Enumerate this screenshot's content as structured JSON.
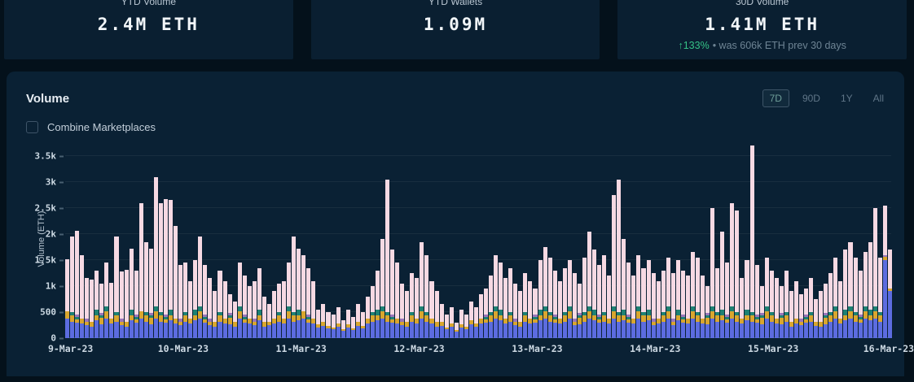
{
  "stats": {
    "cards": [
      {
        "label": "YTD Volume",
        "value": "2.4M ETH"
      },
      {
        "label": "YTD Wallets",
        "value": "1.09M"
      },
      {
        "label": "30D Volume",
        "value": "1.41M ETH",
        "delta_pct": "↑133%",
        "delta_note": "• was 606k ETH prev 30 days",
        "delta_color": "#35c186"
      }
    ]
  },
  "volume_section": {
    "title": "Volume",
    "combine_label": "Combine Marketplaces",
    "combine_checked": false,
    "ranges": [
      {
        "label": "7D",
        "selected": true
      },
      {
        "label": "90D",
        "selected": false
      },
      {
        "label": "1Y",
        "selected": false
      },
      {
        "label": "All",
        "selected": false
      }
    ]
  },
  "chart_data": {
    "type": "bar",
    "stacked": true,
    "granularity": "hourly",
    "title": "Volume",
    "xlabel": "",
    "ylabel": "Volume (ETH)",
    "ymax": 3750,
    "grid": true,
    "legend": "none",
    "yticks": [
      {
        "v": 0,
        "label": "0"
      },
      {
        "v": 500,
        "label": "500"
      },
      {
        "v": 1000,
        "label": "1k"
      },
      {
        "v": 1500,
        "label": "1.5k"
      },
      {
        "v": 2000,
        "label": "2k"
      },
      {
        "v": 2500,
        "label": "2.5k"
      },
      {
        "v": 3000,
        "label": "3k"
      },
      {
        "v": 3500,
        "label": "3.5k"
      }
    ],
    "x_labels": [
      "9-Mar-23",
      "10-Mar-23",
      "11-Mar-23",
      "12-Mar-23",
      "13-Mar-23",
      "14-Mar-23",
      "15-Mar-23",
      "16-Mar-23"
    ],
    "series_colors_bottom_to_top": [
      "#5c6ce0",
      "#d9a62e",
      "#1e8173",
      "#9a76ba",
      "#f6d9e3"
    ],
    "colors": [
      "#5c6ce0",
      "#d9a62e",
      "#1e8173",
      "#9a76ba",
      "#f6d9e3"
    ],
    "bars": [
      [
        380,
        140,
        0,
        0,
        1000
      ],
      [
        320,
        120,
        60,
        0,
        1450
      ],
      [
        300,
        60,
        40,
        60,
        1600
      ],
      [
        280,
        90,
        0,
        0,
        1230
      ],
      [
        250,
        70,
        0,
        50,
        780
      ],
      [
        220,
        100,
        0,
        0,
        810
      ],
      [
        350,
        90,
        110,
        0,
        750
      ],
      [
        260,
        130,
        50,
        40,
        570
      ],
      [
        380,
        140,
        90,
        0,
        840
      ],
      [
        280,
        90,
        0,
        0,
        690
      ],
      [
        320,
        120,
        60,
        0,
        1450
      ],
      [
        250,
        70,
        0,
        50,
        910
      ],
      [
        220,
        100,
        0,
        0,
        990
      ],
      [
        350,
        90,
        110,
        0,
        1170
      ],
      [
        300,
        60,
        40,
        60,
        840
      ],
      [
        380,
        140,
        0,
        0,
        2080
      ],
      [
        320,
        120,
        60,
        0,
        1350
      ],
      [
        260,
        130,
        50,
        40,
        1240
      ],
      [
        380,
        140,
        90,
        0,
        2490
      ],
      [
        320,
        120,
        60,
        0,
        2100
      ],
      [
        300,
        60,
        40,
        60,
        2210
      ],
      [
        350,
        90,
        110,
        0,
        2100
      ],
      [
        280,
        90,
        0,
        0,
        1780
      ],
      [
        250,
        70,
        0,
        50,
        1030
      ],
      [
        320,
        120,
        60,
        0,
        950
      ],
      [
        280,
        90,
        0,
        0,
        730
      ],
      [
        350,
        90,
        110,
        0,
        950
      ],
      [
        380,
        140,
        90,
        0,
        1340
      ],
      [
        300,
        60,
        40,
        60,
        940
      ],
      [
        250,
        70,
        0,
        50,
        780
      ],
      [
        220,
        100,
        0,
        0,
        580
      ],
      [
        320,
        120,
        60,
        0,
        800
      ],
      [
        280,
        90,
        0,
        0,
        730
      ],
      [
        260,
        130,
        50,
        40,
        370
      ],
      [
        220,
        100,
        0,
        0,
        380
      ],
      [
        380,
        140,
        90,
        0,
        840
      ],
      [
        300,
        60,
        40,
        60,
        740
      ],
      [
        280,
        90,
        0,
        0,
        630
      ],
      [
        250,
        70,
        0,
        50,
        730
      ],
      [
        350,
        90,
        110,
        0,
        800
      ],
      [
        220,
        100,
        0,
        0,
        480
      ],
      [
        250,
        70,
        0,
        0,
        330
      ],
      [
        280,
        90,
        0,
        0,
        530
      ],
      [
        320,
        120,
        60,
        0,
        550
      ],
      [
        280,
        90,
        0,
        0,
        730
      ],
      [
        380,
        140,
        90,
        0,
        840
      ],
      [
        320,
        120,
        60,
        0,
        1450
      ],
      [
        350,
        90,
        110,
        0,
        1170
      ],
      [
        380,
        140,
        0,
        0,
        1080
      ],
      [
        300,
        60,
        40,
        60,
        890
      ],
      [
        280,
        90,
        0,
        0,
        730
      ],
      [
        200,
        60,
        0,
        0,
        290
      ],
      [
        240,
        70,
        0,
        0,
        340
      ],
      [
        190,
        50,
        0,
        0,
        260
      ],
      [
        170,
        40,
        0,
        0,
        240
      ],
      [
        220,
        60,
        0,
        0,
        320
      ],
      [
        140,
        40,
        0,
        0,
        170
      ],
      [
        200,
        60,
        0,
        0,
        290
      ],
      [
        150,
        40,
        0,
        0,
        210
      ],
      [
        240,
        70,
        0,
        0,
        340
      ],
      [
        190,
        50,
        0,
        0,
        260
      ],
      [
        280,
        90,
        0,
        0,
        430
      ],
      [
        320,
        120,
        60,
        0,
        500
      ],
      [
        350,
        90,
        110,
        0,
        750
      ],
      [
        380,
        140,
        90,
        0,
        1290
      ],
      [
        320,
        120,
        60,
        0,
        2550
      ],
      [
        300,
        60,
        40,
        60,
        1240
      ],
      [
        280,
        90,
        0,
        0,
        1080
      ],
      [
        250,
        70,
        0,
        50,
        680
      ],
      [
        220,
        100,
        0,
        0,
        580
      ],
      [
        320,
        120,
        60,
        0,
        750
      ],
      [
        280,
        90,
        0,
        0,
        780
      ],
      [
        380,
        140,
        90,
        0,
        1240
      ],
      [
        320,
        120,
        60,
        0,
        1100
      ],
      [
        280,
        90,
        0,
        0,
        730
      ],
      [
        220,
        100,
        0,
        0,
        580
      ],
      [
        240,
        70,
        0,
        0,
        340
      ],
      [
        170,
        40,
        0,
        0,
        240
      ],
      [
        220,
        60,
        0,
        0,
        320
      ],
      [
        120,
        30,
        0,
        0,
        150
      ],
      [
        200,
        60,
        0,
        0,
        290
      ],
      [
        170,
        50,
        0,
        0,
        230
      ],
      [
        260,
        80,
        0,
        0,
        360
      ],
      [
        220,
        60,
        0,
        0,
        320
      ],
      [
        280,
        90,
        0,
        0,
        480
      ],
      [
        300,
        60,
        40,
        60,
        490
      ],
      [
        320,
        120,
        60,
        0,
        700
      ],
      [
        380,
        140,
        90,
        0,
        990
      ],
      [
        350,
        90,
        110,
        0,
        900
      ],
      [
        280,
        90,
        0,
        0,
        780
      ],
      [
        320,
        120,
        60,
        0,
        850
      ],
      [
        250,
        70,
        0,
        50,
        680
      ],
      [
        220,
        100,
        0,
        0,
        580
      ],
      [
        320,
        120,
        60,
        0,
        750
      ],
      [
        280,
        90,
        0,
        0,
        730
      ],
      [
        300,
        60,
        40,
        60,
        490
      ],
      [
        350,
        90,
        110,
        0,
        950
      ],
      [
        380,
        140,
        90,
        0,
        1140
      ],
      [
        320,
        120,
        60,
        0,
        1050
      ],
      [
        300,
        60,
        40,
        60,
        840
      ],
      [
        280,
        90,
        0,
        0,
        730
      ],
      [
        320,
        120,
        60,
        0,
        850
      ],
      [
        380,
        140,
        90,
        0,
        890
      ],
      [
        250,
        70,
        0,
        50,
        880
      ],
      [
        260,
        130,
        50,
        40,
        570
      ],
      [
        320,
        120,
        60,
        0,
        1050
      ],
      [
        380,
        140,
        90,
        0,
        1440
      ],
      [
        350,
        90,
        110,
        0,
        1150
      ],
      [
        300,
        60,
        40,
        60,
        940
      ],
      [
        320,
        120,
        60,
        0,
        1100
      ],
      [
        280,
        90,
        0,
        0,
        830
      ],
      [
        380,
        140,
        90,
        0,
        2140
      ],
      [
        320,
        120,
        60,
        0,
        2550
      ],
      [
        350,
        90,
        110,
        0,
        1350
      ],
      [
        300,
        60,
        40,
        60,
        990
      ],
      [
        280,
        90,
        0,
        0,
        830
      ],
      [
        380,
        140,
        90,
        0,
        990
      ],
      [
        320,
        120,
        60,
        0,
        850
      ],
      [
        350,
        90,
        110,
        0,
        950
      ],
      [
        250,
        70,
        0,
        50,
        880
      ],
      [
        280,
        90,
        0,
        0,
        730
      ],
      [
        320,
        120,
        60,
        0,
        800
      ],
      [
        380,
        140,
        90,
        0,
        940
      ],
      [
        250,
        70,
        0,
        50,
        880
      ],
      [
        350,
        90,
        110,
        0,
        950
      ],
      [
        300,
        60,
        40,
        60,
        840
      ],
      [
        280,
        90,
        0,
        0,
        830
      ],
      [
        380,
        140,
        90,
        0,
        1040
      ],
      [
        320,
        120,
        60,
        0,
        1050
      ],
      [
        280,
        90,
        0,
        0,
        830
      ],
      [
        260,
        130,
        50,
        40,
        520
      ],
      [
        380,
        140,
        90,
        0,
        1890
      ],
      [
        320,
        120,
        60,
        0,
        850
      ],
      [
        350,
        90,
        110,
        0,
        1500
      ],
      [
        300,
        60,
        40,
        60,
        990
      ],
      [
        380,
        140,
        90,
        0,
        1990
      ],
      [
        320,
        120,
        60,
        0,
        1950
      ],
      [
        280,
        90,
        0,
        0,
        780
      ],
      [
        350,
        90,
        110,
        0,
        950
      ],
      [
        320,
        120,
        60,
        0,
        3200
      ],
      [
        300,
        60,
        40,
        60,
        940
      ],
      [
        260,
        130,
        50,
        40,
        520
      ],
      [
        380,
        140,
        90,
        0,
        940
      ],
      [
        320,
        120,
        60,
        0,
        800
      ],
      [
        280,
        90,
        0,
        0,
        780
      ],
      [
        260,
        130,
        50,
        40,
        520
      ],
      [
        320,
        120,
        60,
        0,
        800
      ],
      [
        220,
        100,
        0,
        0,
        580
      ],
      [
        280,
        90,
        0,
        0,
        730
      ],
      [
        250,
        70,
        0,
        50,
        480
      ],
      [
        300,
        60,
        40,
        60,
        490
      ],
      [
        320,
        120,
        60,
        0,
        650
      ],
      [
        240,
        70,
        0,
        0,
        440
      ],
      [
        220,
        100,
        0,
        0,
        580
      ],
      [
        260,
        130,
        50,
        40,
        570
      ],
      [
        320,
        120,
        60,
        0,
        750
      ],
      [
        380,
        140,
        90,
        0,
        940
      ],
      [
        280,
        90,
        0,
        0,
        730
      ],
      [
        350,
        90,
        110,
        0,
        1150
      ],
      [
        380,
        140,
        90,
        0,
        1240
      ],
      [
        320,
        120,
        60,
        0,
        1050
      ],
      [
        300,
        60,
        40,
        60,
        840
      ],
      [
        380,
        140,
        90,
        0,
        1040
      ],
      [
        350,
        90,
        110,
        0,
        1300
      ],
      [
        380,
        140,
        90,
        0,
        1890
      ],
      [
        320,
        120,
        60,
        0,
        1050
      ],
      [
        1500,
        60,
        0,
        40,
        950
      ],
      [
        900,
        50,
        0,
        0,
        750
      ]
    ]
  }
}
